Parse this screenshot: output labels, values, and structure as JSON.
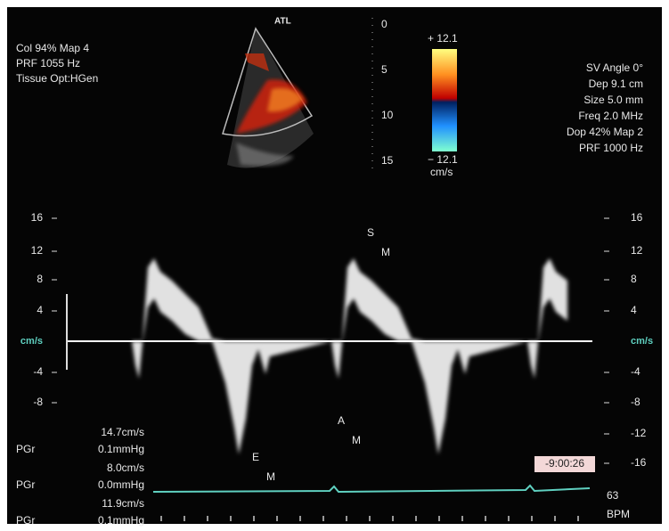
{
  "sector": {
    "label": "ATL",
    "depth_ticks": [
      "0",
      "5",
      "10",
      "15"
    ]
  },
  "settings_left": [
    "Col 94%  Map 4",
    "PRF 1055  Hz",
    "Tissue Opt:HGen"
  ],
  "color_bar": {
    "top": "+ 12.1",
    "bottom": "− 12.1",
    "unit": "cm/s"
  },
  "settings_right": [
    "SV Angle 0°",
    "Dep 9.1  cm",
    "Size 5.0  mm",
    "Freq 2.0  MHz",
    "Dop 42%  Map 2",
    "PRF 1000  Hz"
  ],
  "left_axis": [
    "16",
    "12",
    "8",
    "4",
    "cm/s",
    "-4",
    "-8"
  ],
  "right_axis": [
    "16",
    "12",
    "8",
    "4",
    "cm/s",
    "-4",
    "-8",
    "-12",
    "-16"
  ],
  "markers": [
    {
      "label": "S",
      "sub": "M"
    },
    {
      "label": "E",
      "sub": "M"
    },
    {
      "label": "A",
      "sub": "M"
    }
  ],
  "measurements": [
    {
      "velocity": "14.7cm/s",
      "name": "PGr",
      "gradient": "0.1mmHg"
    },
    {
      "velocity": "8.0cm/s",
      "name": "PGr",
      "gradient": "0.0mmHg"
    },
    {
      "velocity": "11.9cm/s",
      "name": "PGr",
      "gradient": "0.1mmHg"
    }
  ],
  "time": "-9:00:26",
  "heart_rate": {
    "value": "63",
    "unit": "BPM"
  }
}
